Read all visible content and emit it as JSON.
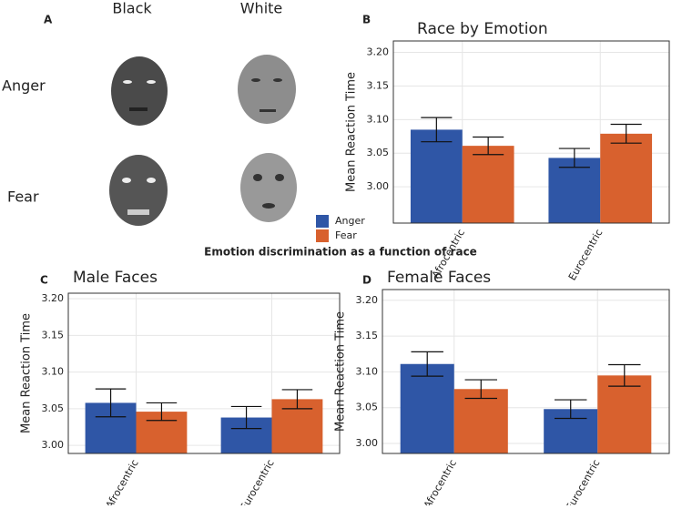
{
  "panel_a": {
    "label": "A",
    "columns": [
      "Black",
      "White"
    ],
    "rows": [
      "Anger",
      "Fear"
    ]
  },
  "caption": "Emotion discrimination as a function of race",
  "chart_data": [
    {
      "type": "bar",
      "panel_label": "B",
      "title": "Race by Emotion",
      "y_label": "Mean Reaction Time",
      "categories": [
        "Afrocentric",
        "Eurocentric"
      ],
      "series": [
        {
          "name": "Anger",
          "color": "#2f56a6",
          "values": [
            3.085,
            3.043
          ],
          "errors": [
            0.018,
            0.014
          ]
        },
        {
          "name": "Fear",
          "color": "#d8612e",
          "values": [
            3.061,
            3.079
          ],
          "errors": [
            0.013,
            0.014
          ]
        }
      ],
      "ylim": [
        2.946,
        3.217
      ],
      "yticks": [
        {
          "value": 3,
          "label": "3.00"
        },
        3.05,
        {
          "value": 3.1,
          "label": "3.10"
        },
        3.15,
        {
          "value": 3.2,
          "label": "3.20"
        }
      ],
      "grid": true
    },
    {
      "type": "bar",
      "panel_label": "C",
      "title": "Male Faces",
      "y_label": "Mean Reaction Time",
      "categories": [
        "Afrocentric",
        "Eurocentric"
      ],
      "series": [
        {
          "color": "#2f56a6",
          "values": [
            3.058,
            3.038
          ],
          "errors": [
            0.019,
            0.015
          ]
        },
        {
          "color": "#d8612e",
          "values": [
            3.046,
            3.063
          ],
          "errors": [
            0.012,
            0.013
          ]
        }
      ],
      "ylim": [
        2.989,
        3.2075
      ],
      "yticks": [
        {
          "value": 3,
          "label": "3.00"
        },
        3.05,
        {
          "value": 3.1,
          "label": "3.10"
        },
        3.15,
        {
          "value": 3.2,
          "label": "3.20"
        }
      ],
      "grid": true
    },
    {
      "type": "bar",
      "panel_label": "D",
      "title": "Female Faces",
      "y_label": "Mean Reaction Time",
      "categories": [
        "Afrocentric",
        "Eurocentric"
      ],
      "series": [
        {
          "color": "#2f56a6",
          "values": [
            3.111,
            3.048
          ],
          "errors": [
            0.017,
            0.013
          ]
        },
        {
          "color": "#d8612e",
          "values": [
            3.076,
            3.095
          ],
          "errors": [
            0.013,
            0.015
          ]
        }
      ],
      "ylim": [
        2.986,
        3.215
      ],
      "yticks": [
        {
          "value": 3,
          "label": "3.00"
        },
        3.05,
        {
          "value": 3.1,
          "label": "3.10"
        },
        3.15,
        {
          "value": 3.2,
          "label": "3.20"
        }
      ],
      "grid": true
    }
  ]
}
